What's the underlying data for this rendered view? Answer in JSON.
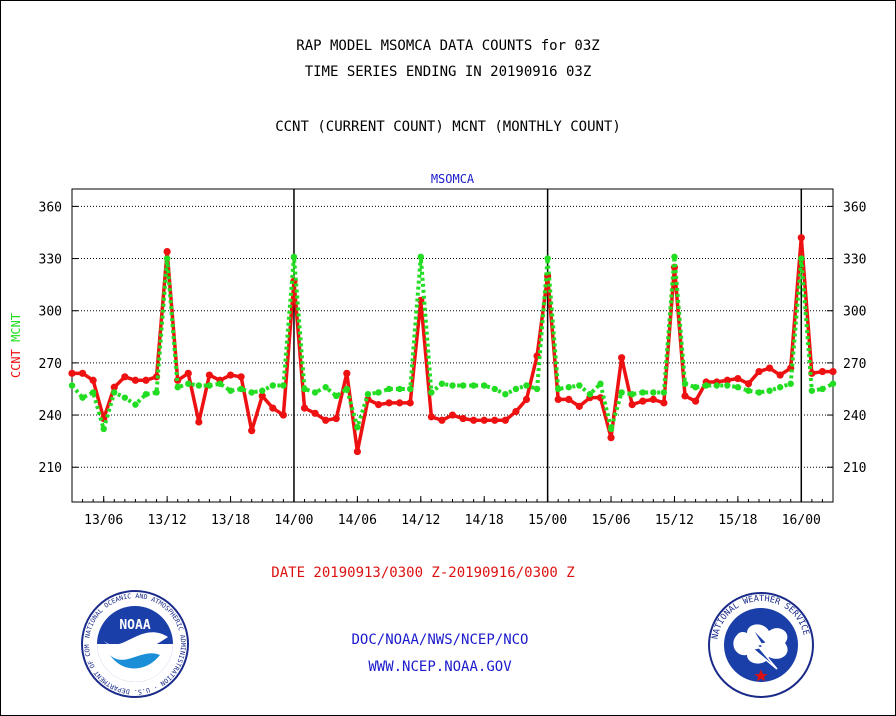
{
  "header": {
    "title_line1": "RAP MODEL MSOMCA DATA COUNTS for 03Z",
    "title_line2": "TIME SERIES ENDING IN 20190916 03Z",
    "subtitle": "CCNT (CURRENT COUNT) MCNT (MONTHLY COUNT)"
  },
  "footer": {
    "date_range": "DATE 20190913/0300 Z-20190916/0300 Z",
    "org": "DOC/NOAA/NWS/NCEP/NCO",
    "url": "WWW.NCEP.NOAA.GOV"
  },
  "logos": {
    "noaa_text": "NOAA",
    "noaa_ring": "NATIONAL OCEANIC AND ATMOSPHERIC ADMINISTRATION · U.S. DEPARTMENT OF COMMERCE",
    "nws_ring": "NATIONAL WEATHER SERVICE"
  },
  "colors": {
    "ccnt": "#ee1111",
    "mcnt": "#22dd22",
    "title_red": "#dd1111",
    "link_blue": "#1a1acc",
    "frame": "#000000"
  },
  "chart_data": {
    "type": "line",
    "title": "MSOMCA",
    "ylabel_parts": [
      {
        "text": "CCNT",
        "color": "#ee1111"
      },
      {
        "text": "MCNT",
        "color": "#22dd22"
      }
    ],
    "ylim": [
      190,
      370
    ],
    "yticks": [
      210,
      240,
      270,
      300,
      330,
      360
    ],
    "xlim": [
      0,
      72
    ],
    "xticks": [
      {
        "x": 3,
        "label": "13/06"
      },
      {
        "x": 9,
        "label": "13/12"
      },
      {
        "x": 15,
        "label": "13/18"
      },
      {
        "x": 21,
        "label": "14/00"
      },
      {
        "x": 27,
        "label": "14/06"
      },
      {
        "x": 33,
        "label": "14/12"
      },
      {
        "x": 39,
        "label": "14/18"
      },
      {
        "x": 45,
        "label": "15/00"
      },
      {
        "x": 51,
        "label": "15/06"
      },
      {
        "x": 57,
        "label": "15/12"
      },
      {
        "x": 63,
        "label": "15/18"
      },
      {
        "x": 69,
        "label": "16/00"
      }
    ],
    "day_lines": [
      21,
      45,
      69
    ],
    "grid": true,
    "series": [
      {
        "name": "CCNT",
        "color": "#ee1111",
        "values": [
          264,
          264,
          260,
          238,
          256,
          262,
          260,
          260,
          262,
          334,
          260,
          264,
          236,
          263,
          260,
          263,
          262,
          231,
          251,
          244,
          240,
          317,
          244,
          241,
          237,
          238,
          264,
          219,
          249,
          246,
          247,
          247,
          247,
          306,
          239,
          237,
          240,
          238,
          237,
          237,
          237,
          237,
          242,
          249,
          274,
          320,
          249,
          249,
          245,
          250,
          250,
          227,
          273,
          246,
          248,
          249,
          247,
          325,
          251,
          248,
          259,
          259,
          260,
          261,
          258,
          265,
          267,
          263,
          267,
          342,
          264,
          265,
          265
        ]
      },
      {
        "name": "MCNT",
        "color": "#22dd22",
        "values": [
          257,
          250,
          253,
          232,
          253,
          250,
          246,
          252,
          253,
          330,
          256,
          258,
          257,
          257,
          258,
          254,
          255,
          253,
          254,
          257,
          257,
          331,
          255,
          253,
          256,
          251,
          255,
          233,
          252,
          253,
          255,
          255,
          255,
          331,
          253,
          258,
          257,
          257,
          257,
          257,
          255,
          252,
          255,
          257,
          255,
          330,
          255,
          256,
          257,
          252,
          258,
          232,
          253,
          252,
          253,
          253,
          253,
          331,
          258,
          256,
          257,
          257,
          257,
          256,
          254,
          253,
          254,
          256,
          258,
          330,
          254,
          255,
          258
        ]
      }
    ]
  }
}
